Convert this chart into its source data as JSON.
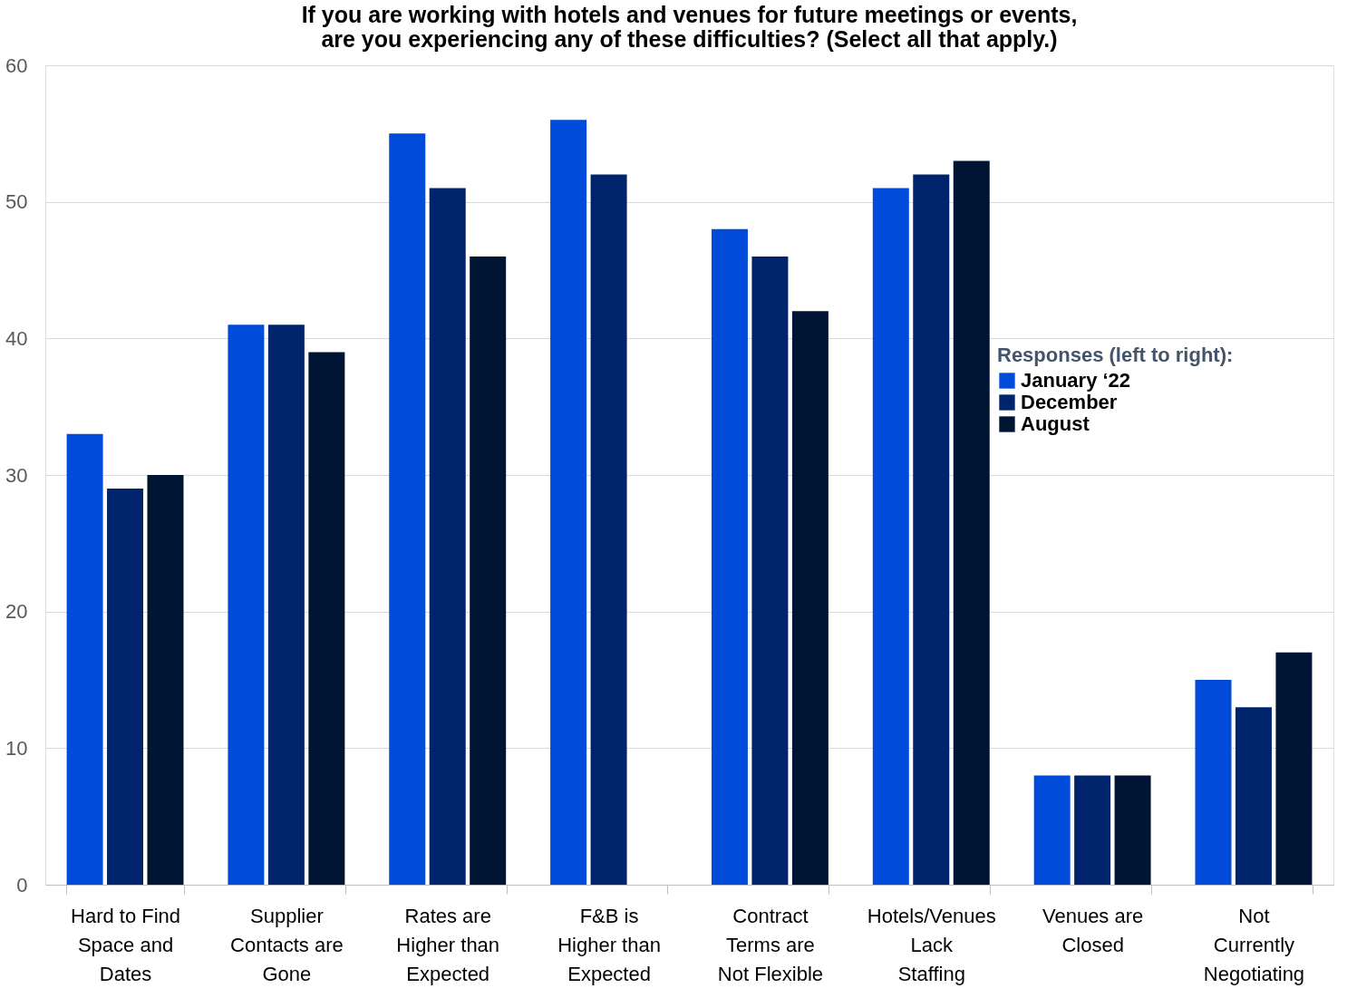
{
  "chart_data": {
    "type": "bar",
    "title": "If you are working with hotels and venues for future meetings or events, are you experiencing any of these difficulties? (Select all that apply.)",
    "categories": [
      "Hard to Find Space and Dates",
      "Supplier Contacts are Gone",
      "Rates are Higher than Expected",
      "F&B is Higher than Expected",
      "Contract Terms are Not Flexible",
      "Hotels/Venues Lack Staffing",
      "Venues are Closed",
      "Not Currently Negotiating"
    ],
    "series": [
      {
        "name": "January ‘22",
        "color": "#004bd9",
        "values": [
          33,
          41,
          55,
          56,
          48,
          51,
          8,
          15
        ]
      },
      {
        "name": "December",
        "color": "#00246b",
        "values": [
          29,
          41,
          51,
          52,
          46,
          52,
          8,
          13
        ]
      },
      {
        "name": "August",
        "color": "#001433",
        "values": [
          30,
          39,
          46,
          null,
          42,
          53,
          8,
          17
        ]
      }
    ],
    "legend_title": "Responses (left to right):",
    "legend": "right",
    "ylim": [
      0,
      60
    ],
    "yticks": [
      0,
      10,
      20,
      30,
      40,
      50,
      60
    ],
    "grid": "y"
  }
}
